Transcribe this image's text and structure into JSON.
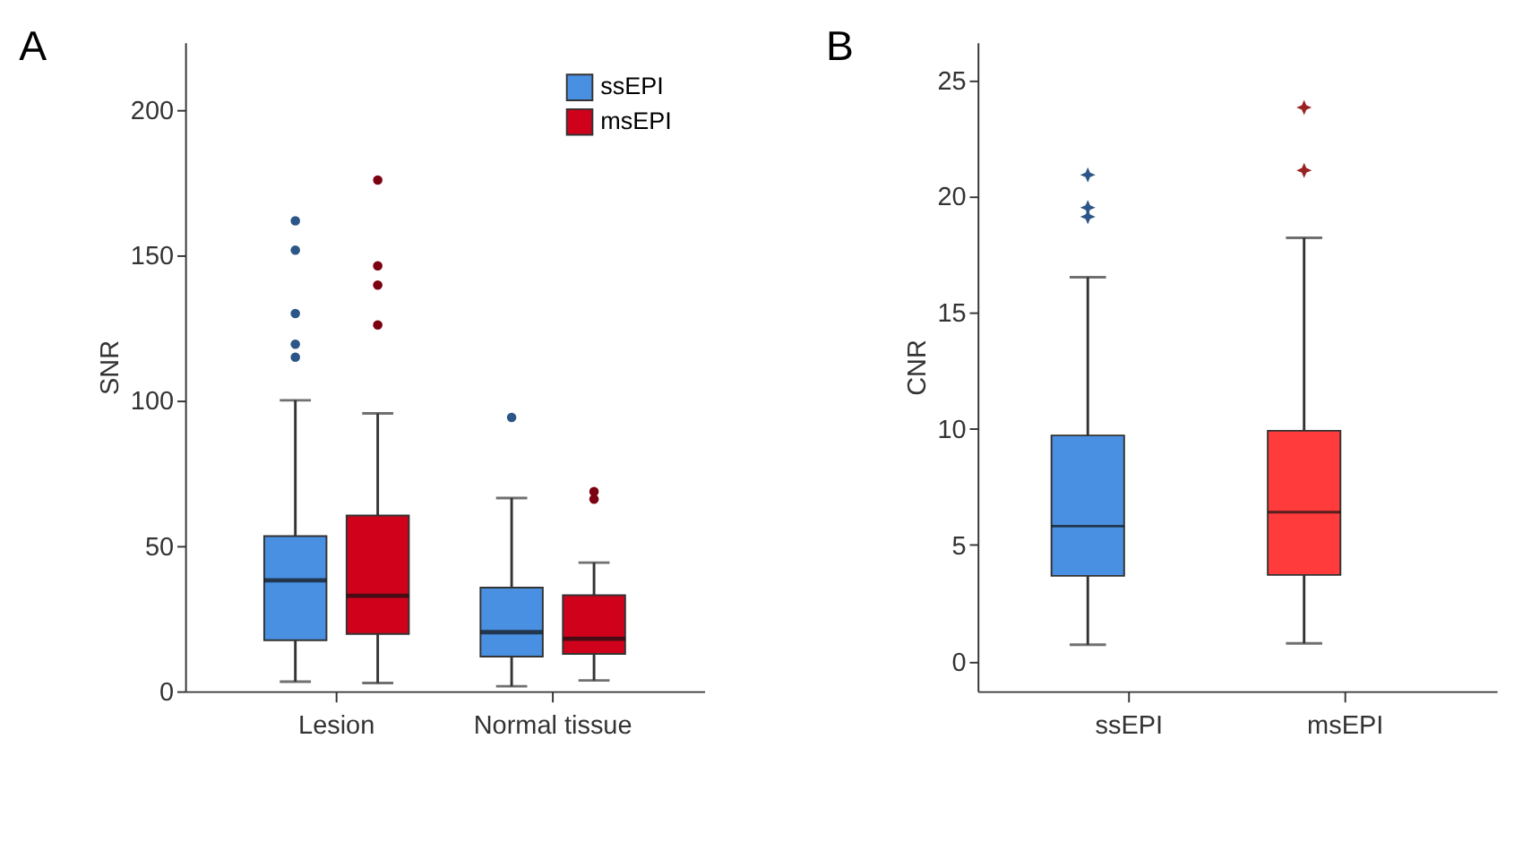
{
  "chart_data": [
    {
      "type": "box",
      "title": "A",
      "ylabel": "SNR",
      "categories": [
        "Lesion",
        "Normal tissue"
      ],
      "ylim": [
        0,
        223
      ],
      "yticks": [
        0,
        50,
        100,
        150,
        200
      ],
      "grid": false,
      "legend": "top right",
      "marker": "circle",
      "series": [
        {
          "name": "ssEPI",
          "color": "#4a90e2",
          "boxes": [
            {
              "low": 3.3,
              "q1": 17.5,
              "median": 38.1,
              "q3": 53.3,
              "high": 100,
              "outliers": [
                114.8,
                119.3,
                129.8,
                151.6,
                161.7
              ]
            },
            {
              "low": 1.7,
              "q1": 11.9,
              "median": 20.3,
              "q3": 35.6,
              "high": 66.4,
              "outliers": [
                94.1
              ]
            }
          ]
        },
        {
          "name": "msEPI",
          "color": "#d0021b",
          "boxes": [
            {
              "low": 2.8,
              "q1": 19.7,
              "median": 32.8,
              "q3": 60.4,
              "high": 95.5,
              "outliers": [
                125.9,
                139.6,
                146.2,
                175.7
              ]
            },
            {
              "low": 3.7,
              "q1": 12.8,
              "median": 18.0,
              "q3": 33.0,
              "high": 44.2,
              "outliers": [
                66.0,
                68.6
              ]
            }
          ]
        }
      ]
    },
    {
      "type": "box",
      "title": "B",
      "ylabel": "CNR",
      "categories": [
        "ssEPI",
        "msEPI"
      ],
      "ylim": [
        -1.3,
        26.6
      ],
      "yticks": [
        0,
        5,
        10,
        15,
        20,
        25
      ],
      "grid": false,
      "marker": "star",
      "colors": [
        "#4a90e2",
        "#ff3b3b"
      ],
      "boxes": [
        {
          "low": 0.7,
          "q1": 3.66,
          "median": 5.8,
          "q3": 9.7,
          "high": 16.5,
          "outliers": [
            19.1,
            19.5,
            20.9
          ]
        },
        {
          "low": 0.76,
          "q1": 3.7,
          "median": 6.4,
          "q3": 9.9,
          "high": 18.2,
          "outliers": [
            21.1,
            23.8
          ]
        }
      ]
    }
  ]
}
